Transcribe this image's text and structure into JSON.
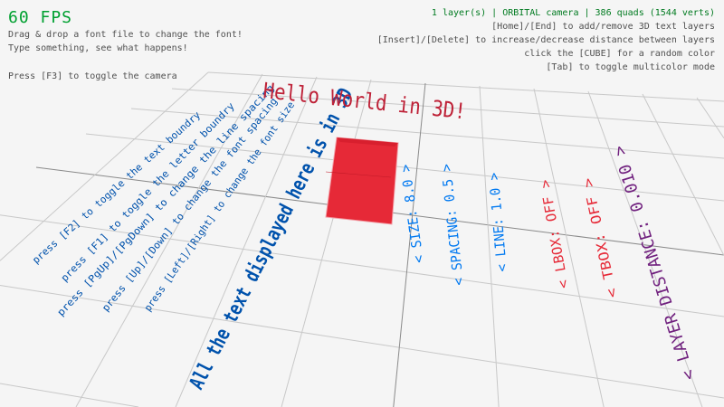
{
  "fps": "60 FPS",
  "help_left": [
    "Drag & drop a font file to change the font!",
    "Type something, see what happens!",
    "Press [F3] to toggle the camera"
  ],
  "status": "1 layer(s) | ORBITAL camera |  386 quads (1544 verts)",
  "help_right": [
    "[Home]/[End] to add/remove 3D text layers",
    "[Insert]/[Delete] to increase/decrease distance between layers",
    "click the [CUBE] for a random color",
    "[Tab] to toggle multicolor mode"
  ],
  "scene": {
    "title3d": "Hello World in 3D!",
    "main_text": "All the text displayed here is in 3D",
    "help_lines": [
      "press [F2] to toggle the text boundry",
      "press [F1] to toggle the letter boundry",
      "press [PgUp]/[PgDown] to change the line spacing",
      "press [Up]/[Down] to change the font spacing",
      "press [Left]/[Right] to change the font size"
    ],
    "controls": {
      "size": "< SIZE: 8.0 >",
      "spacing": "< SPACING: 0.5 >",
      "line": "< LINE: 1.0 >",
      "lbox": "< LBOX: OFF >",
      "tbox": "< TBOX: OFF >",
      "layer_distance": "< LAYER DISTANCE: 0.010 >"
    }
  },
  "colors": {
    "fps": "#00a030",
    "status": "#007a20",
    "cube": "#e62937",
    "title3d": "#be2137",
    "help_blue": "#0052ac",
    "control_blue": "#0079f1",
    "control_red": "#e62937",
    "control_purple": "#70207e"
  }
}
